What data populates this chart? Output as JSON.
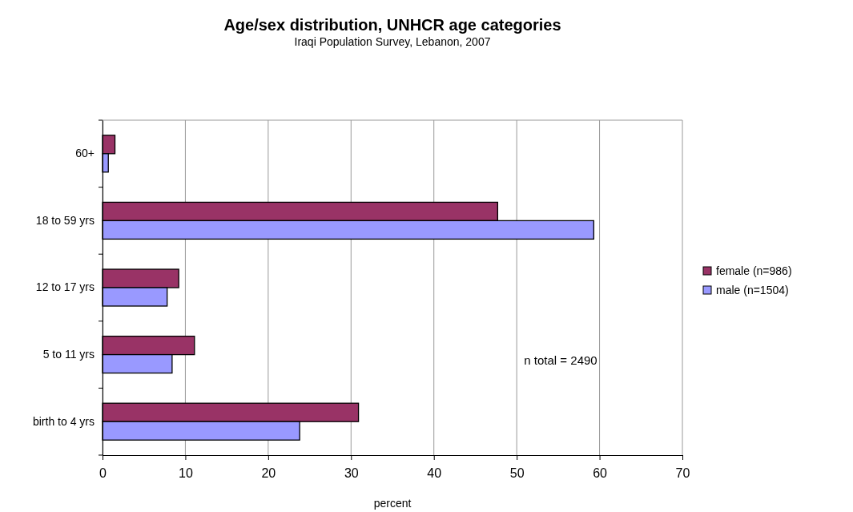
{
  "chart_data": {
    "type": "bar",
    "orientation": "horizontal",
    "title": "Age/sex distribution, UNHCR age categories",
    "subtitle": "Iraqi Population Survey, Lebanon, 2007",
    "xlabel": "percent",
    "categories": [
      "60+",
      "18 to 59 yrs",
      "12 to 17 yrs",
      "5 to 11 yrs",
      "birth to 4 yrs"
    ],
    "series": [
      {
        "name": "female (n=986)",
        "color": "#993366",
        "values": [
          1.5,
          47.7,
          9.2,
          11.1,
          30.9
        ]
      },
      {
        "name": "male (n=1504)",
        "color": "#9999ff",
        "values": [
          0.7,
          59.3,
          7.8,
          8.4,
          23.8
        ]
      }
    ],
    "xlim": [
      0,
      70
    ],
    "xticks": [
      0,
      10,
      20,
      30,
      40,
      50,
      60,
      70
    ],
    "grid": "x",
    "legend": "right",
    "annotations": [
      "n total = 2490"
    ]
  }
}
